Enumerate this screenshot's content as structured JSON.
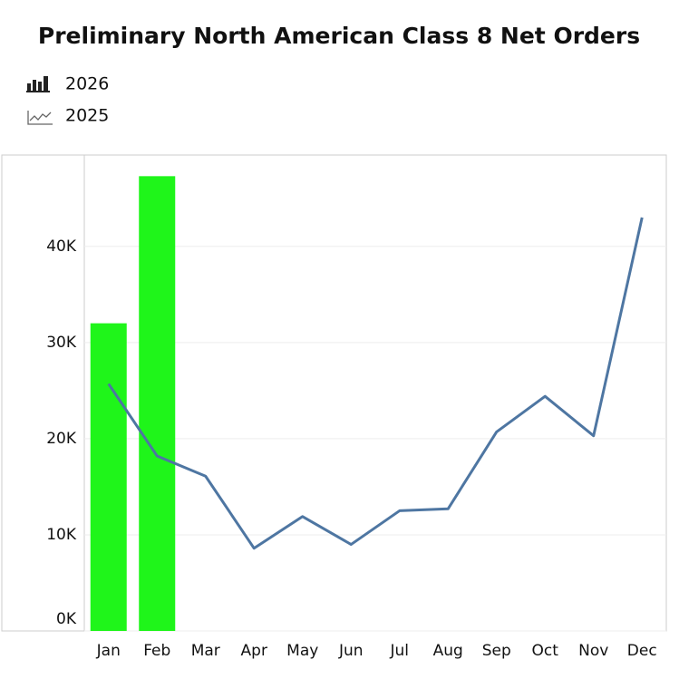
{
  "chart_data": {
    "type": "combo",
    "title": "Preliminary North American Class 8 Net Orders",
    "categories": [
      "Jan",
      "Feb",
      "Mar",
      "Apr",
      "May",
      "Jun",
      "Jul",
      "Aug",
      "Sep",
      "Oct",
      "Nov",
      "Dec"
    ],
    "series": [
      {
        "name": "2026",
        "type": "bar",
        "color": "#1ff51a",
        "values": [
          32000,
          47300,
          null,
          null,
          null,
          null,
          null,
          null,
          null,
          null,
          null,
          null
        ]
      },
      {
        "name": "2025",
        "type": "line",
        "color": "#4e76a2",
        "values": [
          25700,
          18200,
          16100,
          8600,
          11900,
          9000,
          12500,
          12700,
          20700,
          24400,
          20300,
          43000
        ]
      }
    ],
    "ylim": [
      0,
      49500
    ],
    "yticks": [
      {
        "value": 0,
        "label": "0K"
      },
      {
        "value": 10000,
        "label": "10K"
      },
      {
        "value": 20000,
        "label": "20K"
      },
      {
        "value": 30000,
        "label": "30K"
      },
      {
        "value": 40000,
        "label": "40K"
      }
    ],
    "grid": true
  }
}
